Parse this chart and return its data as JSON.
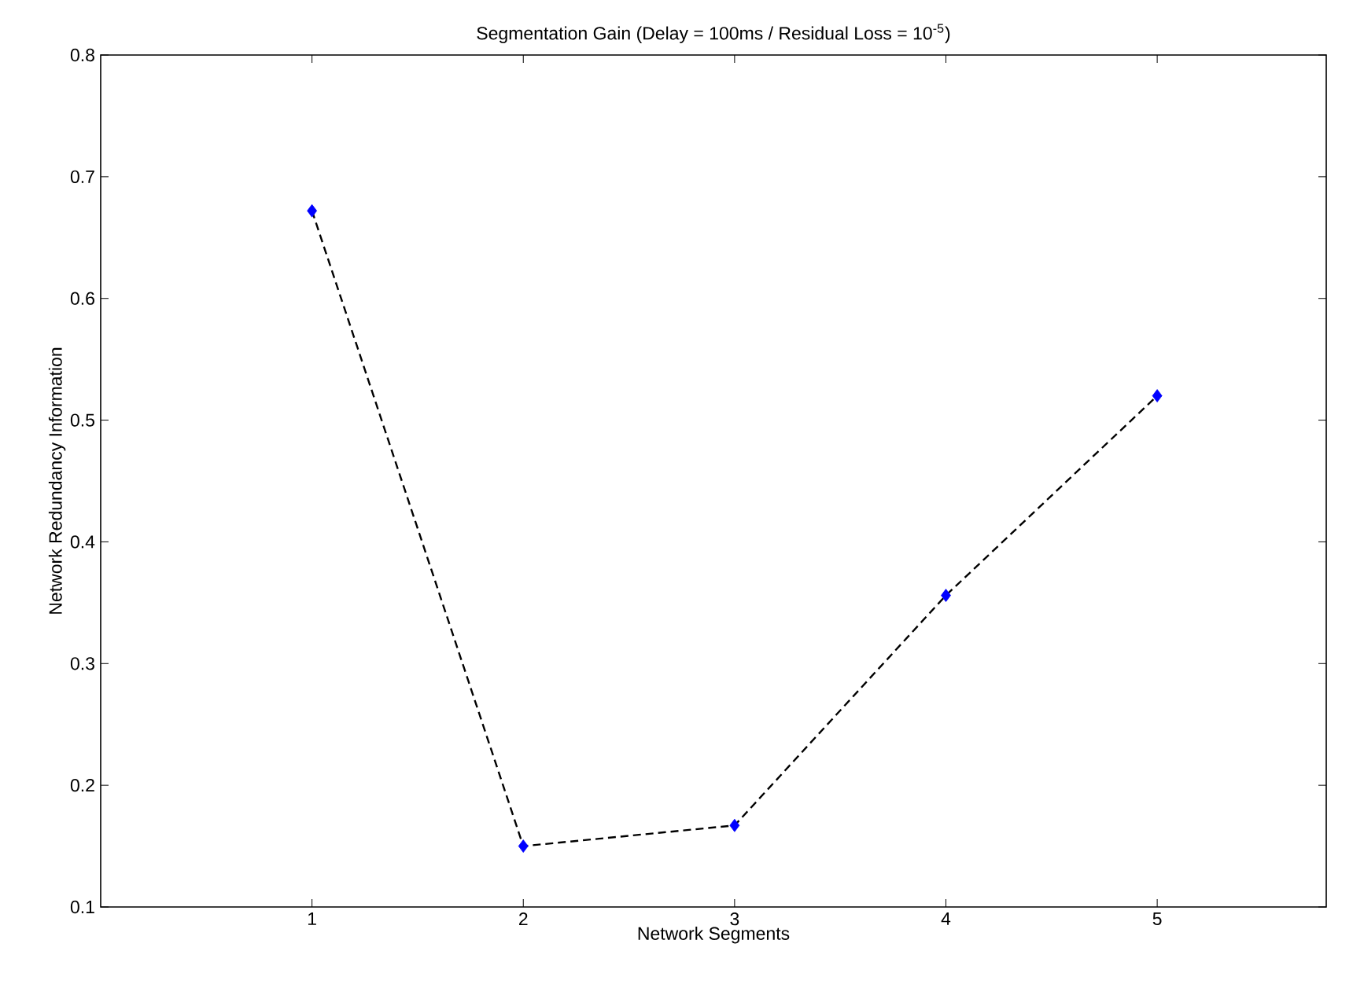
{
  "chart_data": {
    "type": "line",
    "title": "Segmentation Gain (Delay = 100ms / Residual Loss = 10$^{-5}$)",
    "xlabel": "Network Segments",
    "ylabel": "Network Redundancy Information",
    "x": [
      1,
      2,
      3,
      4,
      5
    ],
    "series": [
      {
        "color": "#000000",
        "colors": [
          "#0000ff",
          "#0000ff",
          "#0000ff",
          "#0000ff",
          "#0000ff"
        ],
        "values": [
          0.672,
          0.15,
          0.167,
          0.356,
          0.52
        ]
      }
    ],
    "xlim": [
      0,
      5.8
    ],
    "ylim": [
      0.1,
      0.8
    ],
    "xticks": [
      1,
      2,
      3,
      4,
      5
    ],
    "yticks": [
      0.1,
      0.2,
      0.3,
      0.4,
      0.5,
      0.6,
      0.7,
      0.8
    ],
    "marker": "diamond",
    "line_style": "dashed"
  }
}
